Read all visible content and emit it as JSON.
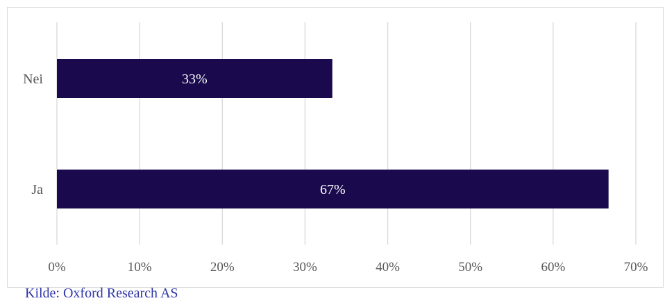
{
  "chart_data": {
    "type": "bar",
    "orientation": "horizontal",
    "categories": [
      "Nei",
      "Ja"
    ],
    "values": [
      33.3,
      66.7
    ],
    "data_labels": [
      "33%",
      "67%"
    ],
    "xlim": [
      0,
      70
    ],
    "x_ticks": [
      0,
      10,
      20,
      30,
      40,
      50,
      60,
      70
    ],
    "x_tick_labels": [
      "0%",
      "10%",
      "20%",
      "30%",
      "40%",
      "50%",
      "60%",
      "70%"
    ],
    "grid": "vertical",
    "title": "",
    "xlabel": "",
    "ylabel": "",
    "bar_color": "#1a0a4d",
    "grid_color": "#d9d9d9"
  },
  "source": "Kilde: Oxford Research AS"
}
